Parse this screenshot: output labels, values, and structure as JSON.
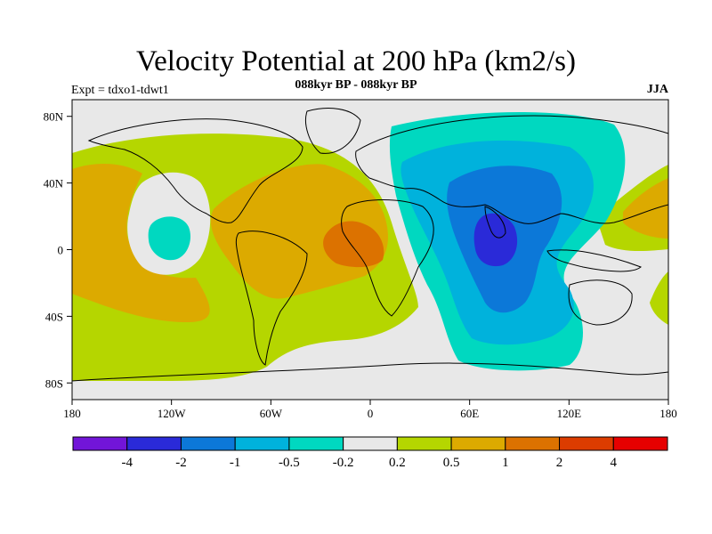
{
  "header": {
    "title": "Velocity Potential at 200 hPa (km2/s)",
    "subtitle": "088kyr BP - 088kyr BP",
    "left_label": "Expt = tdxo1-tdwt1",
    "right_label": "JJA"
  },
  "map": {
    "lon_range": [
      -180,
      180
    ],
    "lat_range": [
      -90,
      90
    ],
    "x_ticks": [
      {
        "lon": -180,
        "label": "180"
      },
      {
        "lon": -120,
        "label": "120W"
      },
      {
        "lon": -60,
        "label": "60W"
      },
      {
        "lon": 0,
        "label": "0"
      },
      {
        "lon": 60,
        "label": "60E"
      },
      {
        "lon": 120,
        "label": "120E"
      },
      {
        "lon": 180,
        "label": "180"
      }
    ],
    "y_ticks": [
      {
        "lat": 80,
        "label": "80N"
      },
      {
        "lat": 40,
        "label": "40N"
      },
      {
        "lat": 0,
        "label": "0"
      },
      {
        "lat": -40,
        "label": "40S"
      },
      {
        "lat": -80,
        "label": "80S"
      }
    ],
    "colors": {
      "lt_neg4": "#7215d8",
      "neg4_neg2": "#2a2ad8",
      "neg2_neg1": "#0c78d8",
      "neg1_neg05": "#00b2dc",
      "neg05_neg02": "#00d8c0",
      "neg02_02": "#e8e8e8",
      "p02_05": "#b5d600",
      "p05_1": "#dcaa00",
      "p1_2": "#dc7200",
      "p2_4": "#dc3c00",
      "gt4": "#e60000"
    }
  },
  "colorbar": {
    "colors": [
      "#7215d8",
      "#2a2ad8",
      "#0c78d8",
      "#00b2dc",
      "#00d8c0",
      "#e8e8e8",
      "#b5d600",
      "#dcaa00",
      "#dc7200",
      "#dc3c00",
      "#e60000"
    ],
    "labels": [
      "-4",
      "-2",
      "-1",
      "-0.5",
      "-0.2",
      "0.2",
      "0.5",
      "1",
      "2",
      "4"
    ]
  }
}
